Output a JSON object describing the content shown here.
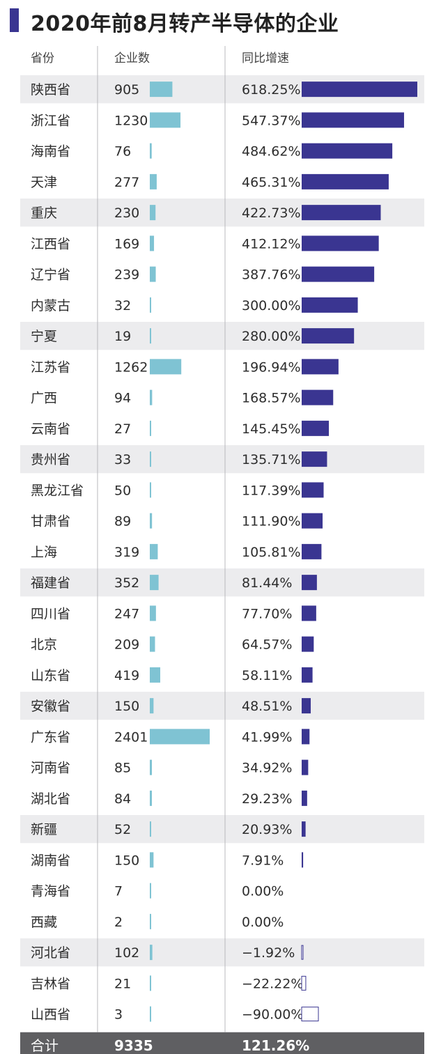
{
  "title": "2020年前8月转产半导体的企业",
  "colors": {
    "accent": "#3a3591",
    "count_bar": "#7fc3d3",
    "growth_bar": "#3a3591",
    "band": "#ececee",
    "total_row": "#5f5f62",
    "divider": "#b9b9bc"
  },
  "chart_data": {
    "type": "table",
    "columns": [
      "省份",
      "企业数",
      "同比增速"
    ],
    "rows": [
      {
        "province": "陕西省",
        "count": 905,
        "growth": 618.25,
        "growth_label": "618.25%"
      },
      {
        "province": "浙江省",
        "count": 1230,
        "growth": 547.37,
        "growth_label": "547.37%"
      },
      {
        "province": "海南省",
        "count": 76,
        "growth": 484.62,
        "growth_label": "484.62%"
      },
      {
        "province": "天津",
        "count": 277,
        "growth": 465.31,
        "growth_label": "465.31%"
      },
      {
        "province": "重庆",
        "count": 230,
        "growth": 422.73,
        "growth_label": "422.73%"
      },
      {
        "province": "江西省",
        "count": 169,
        "growth": 412.12,
        "growth_label": "412.12%"
      },
      {
        "province": "辽宁省",
        "count": 239,
        "growth": 387.76,
        "growth_label": "387.76%"
      },
      {
        "province": "内蒙古",
        "count": 32,
        "growth": 300.0,
        "growth_label": "300.00%"
      },
      {
        "province": "宁夏",
        "count": 19,
        "growth": 280.0,
        "growth_label": "280.00%"
      },
      {
        "province": "江苏省",
        "count": 1262,
        "growth": 196.94,
        "growth_label": "196.94%"
      },
      {
        "province": "广西",
        "count": 94,
        "growth": 168.57,
        "growth_label": "168.57%"
      },
      {
        "province": "云南省",
        "count": 27,
        "growth": 145.45,
        "growth_label": "145.45%"
      },
      {
        "province": "贵州省",
        "count": 33,
        "growth": 135.71,
        "growth_label": "135.71%"
      },
      {
        "province": "黑龙江省",
        "count": 50,
        "growth": 117.39,
        "growth_label": "117.39%"
      },
      {
        "province": "甘肃省",
        "count": 89,
        "growth": 111.9,
        "growth_label": "111.90%"
      },
      {
        "province": "上海",
        "count": 319,
        "growth": 105.81,
        "growth_label": "105.81%"
      },
      {
        "province": "福建省",
        "count": 352,
        "growth": 81.44,
        "growth_label": "81.44%"
      },
      {
        "province": "四川省",
        "count": 247,
        "growth": 77.7,
        "growth_label": "77.70%"
      },
      {
        "province": "北京",
        "count": 209,
        "growth": 64.57,
        "growth_label": "64.57%"
      },
      {
        "province": "山东省",
        "count": 419,
        "growth": 58.11,
        "growth_label": "58.11%"
      },
      {
        "province": "安徽省",
        "count": 150,
        "growth": 48.51,
        "growth_label": "48.51%"
      },
      {
        "province": "广东省",
        "count": 2401,
        "growth": 41.99,
        "growth_label": "41.99%"
      },
      {
        "province": "河南省",
        "count": 85,
        "growth": 34.92,
        "growth_label": "34.92%"
      },
      {
        "province": "湖北省",
        "count": 84,
        "growth": 29.23,
        "growth_label": "29.23%"
      },
      {
        "province": "新疆",
        "count": 52,
        "growth": 20.93,
        "growth_label": "20.93%"
      },
      {
        "province": "湖南省",
        "count": 150,
        "growth": 7.91,
        "growth_label": "7.91%"
      },
      {
        "province": "青海省",
        "count": 7,
        "growth": 0.0,
        "growth_label": "0.00%"
      },
      {
        "province": "西藏",
        "count": 2,
        "growth": 0.0,
        "growth_label": "0.00%"
      },
      {
        "province": "河北省",
        "count": 102,
        "growth": -1.92,
        "growth_label": "−1.92%"
      },
      {
        "province": "吉林省",
        "count": 21,
        "growth": -22.22,
        "growth_label": "−22.22%"
      },
      {
        "province": "山西省",
        "count": 3,
        "growth": -90.0,
        "growth_label": "−90.00%"
      }
    ],
    "total": {
      "label": "合计",
      "count": 9335,
      "growth_label": "121.26%"
    },
    "count_range": [
      0,
      2401
    ],
    "growth_range": [
      -90,
      618.25
    ]
  }
}
